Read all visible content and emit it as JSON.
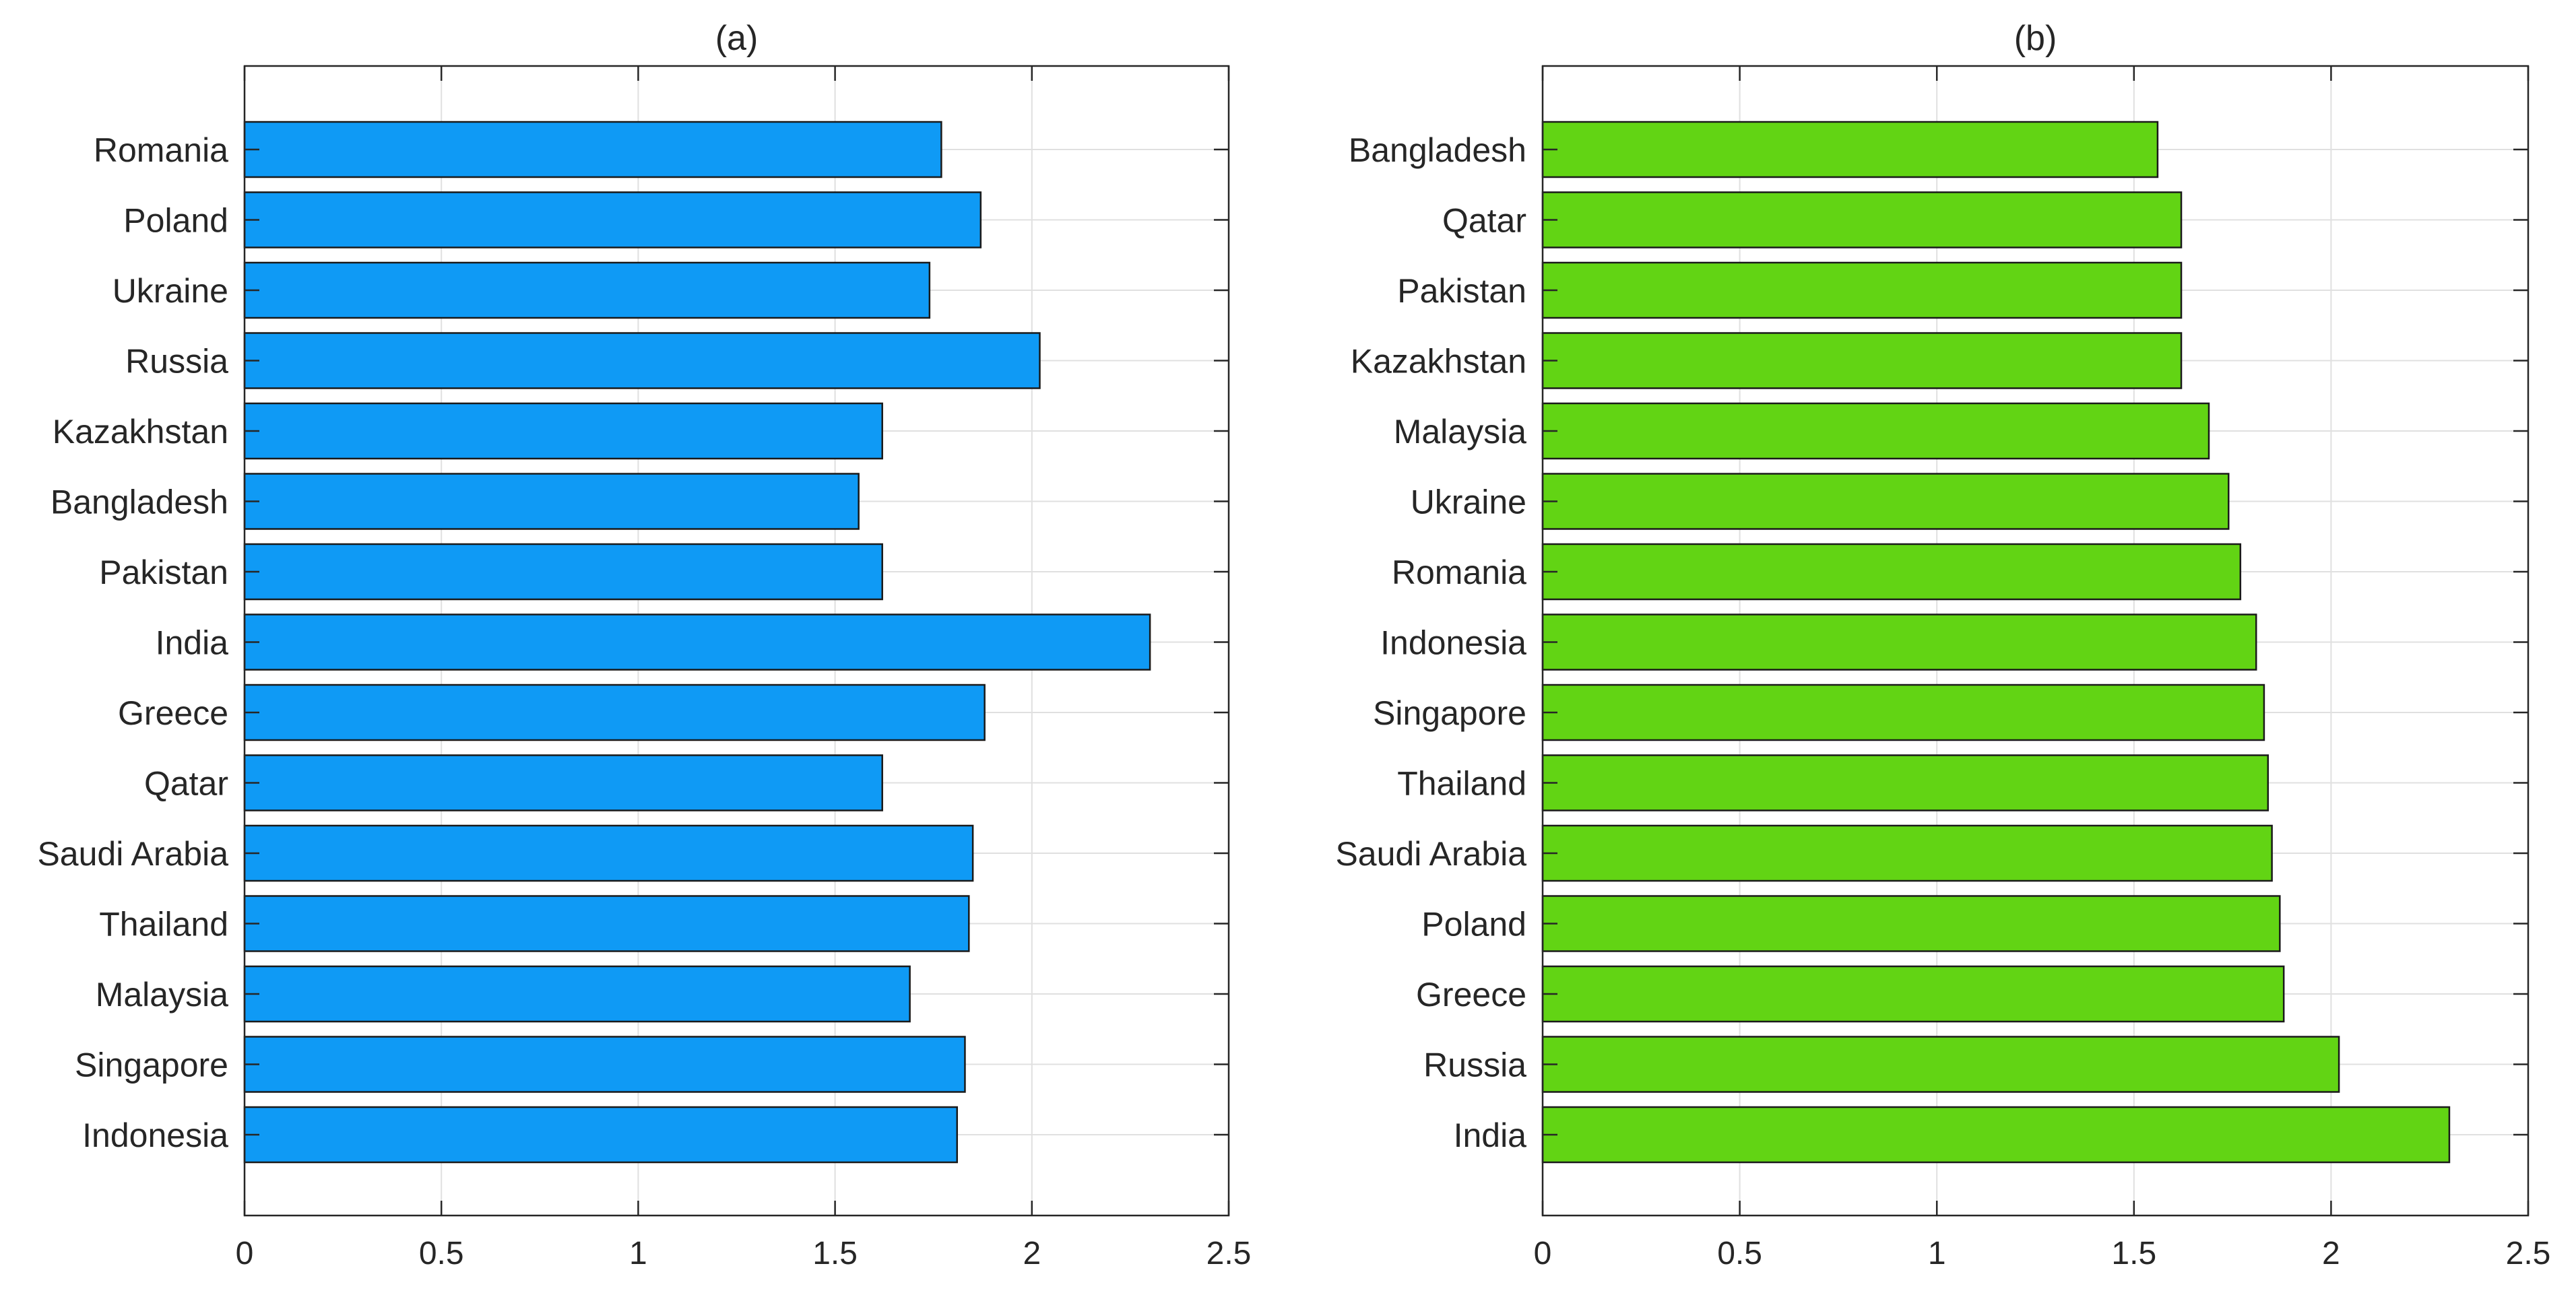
{
  "chart_data": [
    {
      "type": "bar",
      "orientation": "horizontal",
      "title": "(a)",
      "xlabel": "",
      "ylabel": "",
      "xlim": [
        0,
        2.5
      ],
      "xticks": [
        "0",
        "0.5",
        "1",
        "1.5",
        "2",
        "2.5"
      ],
      "grid": true,
      "bar_color": "#0f9af5",
      "categories": [
        "Romania",
        "Poland",
        "Ukraine",
        "Russia",
        "Kazakhstan",
        "Bangladesh",
        "Pakistan",
        "India",
        "Greece",
        "Qatar",
        "Saudi Arabia",
        "Thailand",
        "Malaysia",
        "Singapore",
        "Indonesia"
      ],
      "values": [
        1.77,
        1.87,
        1.74,
        2.02,
        1.62,
        1.56,
        1.62,
        2.3,
        1.88,
        1.62,
        1.85,
        1.84,
        1.69,
        1.83,
        1.81
      ]
    },
    {
      "type": "bar",
      "orientation": "horizontal",
      "title": "(b)",
      "xlabel": "",
      "ylabel": "",
      "xlim": [
        0,
        2.5
      ],
      "xticks": [
        "0",
        "0.5",
        "1",
        "1.5",
        "2",
        "2.5"
      ],
      "grid": true,
      "bar_color": "#62d414",
      "categories": [
        "Bangladesh",
        "Qatar",
        "Pakistan",
        "Kazakhstan",
        "Malaysia",
        "Ukraine",
        "Romania",
        "Indonesia",
        "Singapore",
        "Thailand",
        "Saudi Arabia",
        "Poland",
        "Greece",
        "Russia",
        "India"
      ],
      "values": [
        1.56,
        1.62,
        1.62,
        1.62,
        1.69,
        1.74,
        1.77,
        1.81,
        1.83,
        1.84,
        1.85,
        1.87,
        1.88,
        2.02,
        2.3
      ]
    }
  ]
}
